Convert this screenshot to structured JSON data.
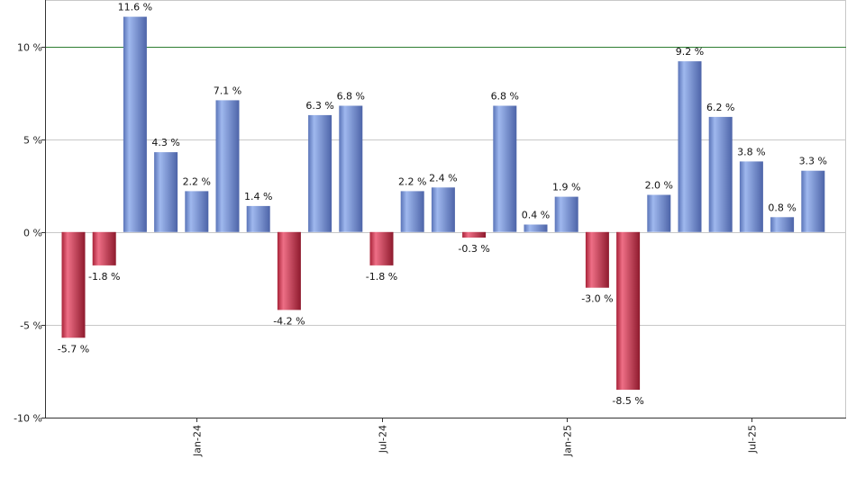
{
  "chart_data": {
    "type": "bar",
    "title": "",
    "xlabel": "",
    "ylabel": "",
    "ylim": [
      -10,
      12.5
    ],
    "yticks": [
      {
        "value": -10,
        "label": "-10 %"
      },
      {
        "value": -5,
        "label": "-5 %"
      },
      {
        "value": 0,
        "label": "0 %"
      },
      {
        "value": 5,
        "label": "5 %"
      },
      {
        "value": 10,
        "label": "10 %"
      }
    ],
    "xticks": [
      {
        "index": 4,
        "label": "Jan-24"
      },
      {
        "index": 10,
        "label": "Jul-24"
      },
      {
        "index": 16,
        "label": "Jan-25"
      },
      {
        "index": 22,
        "label": "Jul-25"
      }
    ],
    "reference_line": {
      "value": 10,
      "color": "#2e7d32"
    },
    "grid": true,
    "colors": {
      "positive": "#7b96d8",
      "negative": "#c8344d"
    },
    "values": [
      -5.7,
      -1.8,
      11.6,
      4.3,
      2.2,
      7.1,
      1.4,
      -4.2,
      6.3,
      6.8,
      -1.8,
      2.2,
      2.4,
      -0.3,
      6.8,
      0.4,
      1.9,
      -3.0,
      -8.5,
      2.0,
      9.2,
      6.2,
      3.8,
      0.8,
      3.3
    ],
    "labels": [
      "-5.7 %",
      "-1.8 %",
      "11.6 %",
      "4.3 %",
      "2.2 %",
      "7.1 %",
      "1.4 %",
      "-4.2 %",
      "6.3 %",
      "6.8 %",
      "-1.8 %",
      "2.2 %",
      "2.4 %",
      "-0.3 %",
      "6.8 %",
      "0.4 %",
      "1.9 %",
      "-3.0 %",
      "-8.5 %",
      "2.0 %",
      "9.2 %",
      "6.2 %",
      "3.8 %",
      "0.8 %",
      "3.3 %"
    ]
  }
}
